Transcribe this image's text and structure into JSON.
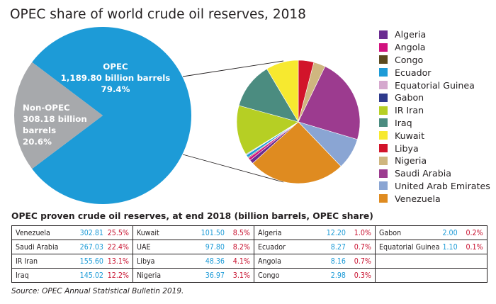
{
  "title": "OPEC share of world crude oil reserves, 2018",
  "table_title": "OPEC proven crude oil reserves, at end 2018 (billion barrels, OPEC share)",
  "source": "Source: OPEC Annual Statistical Bulletin 2019.",
  "chart_data": [
    {
      "type": "pie",
      "labels": [
        "OPEC",
        "Non-OPEC"
      ],
      "values": [
        1189.8,
        308.18
      ],
      "shares": [
        "79.4%",
        "20.6%"
      ],
      "colors": [
        "#1d9bd7",
        "#a7a9ac"
      ],
      "slice_labels": [
        {
          "lines": [
            "OPEC",
            "1,189.80 billion barrels",
            "79.4%"
          ]
        },
        {
          "lines": [
            "Non-OPEC",
            "308.18 billion",
            "barrels",
            "20.6%"
          ]
        }
      ]
    },
    {
      "type": "pie",
      "title": "",
      "labels": [
        "Algeria",
        "Angola",
        "Congo",
        "Ecuador",
        "Equatorial Guinea",
        "Gabon",
        "IR Iran",
        "Iraq",
        "Kuwait",
        "Libya",
        "Nigeria",
        "Saudi Arabia",
        "United Arab Emirates",
        "Venezuela"
      ],
      "values": [
        12.2,
        8.16,
        2.98,
        8.27,
        1.1,
        2.0,
        155.6,
        145.02,
        101.5,
        48.36,
        36.97,
        267.03,
        97.8,
        302.81
      ],
      "colors": [
        "#6b2c91",
        "#d1127e",
        "#5c4a1e",
        "#1d9bd7",
        "#d5a8ce",
        "#2e3a8c",
        "#b6cf24",
        "#4b8c80",
        "#f7e92f",
        "#d2142a",
        "#cfb67f",
        "#9c3b8f",
        "#8aa5d3",
        "#df8b20"
      ],
      "legend_placement": "right"
    }
  ],
  "table": {
    "columns": [
      [
        {
          "name": "Venezuela",
          "value": "302.81",
          "share": "25.5%"
        },
        {
          "name": "Saudi Arabia",
          "value": "267.03",
          "share": "22.4%"
        },
        {
          "name": "IR Iran",
          "value": "155.60",
          "share": "13.1%"
        },
        {
          "name": "Iraq",
          "value": "145.02",
          "share": "12.2%"
        }
      ],
      [
        {
          "name": "Kuwait",
          "value": "101.50",
          "share": "8.5%"
        },
        {
          "name": "UAE",
          "value": "97.80",
          "share": "8.2%"
        },
        {
          "name": "Libya",
          "value": "48.36",
          "share": "4.1%"
        },
        {
          "name": "Nigeria",
          "value": "36.97",
          "share": "3.1%"
        }
      ],
      [
        {
          "name": "Algeria",
          "value": "12.20",
          "share": "1.0%"
        },
        {
          "name": "Ecuador",
          "value": "8.27",
          "share": "0.7%"
        },
        {
          "name": "Angola",
          "value": "8.16",
          "share": "0.7%"
        },
        {
          "name": "Congo",
          "value": "2.98",
          "share": "0.3%"
        }
      ],
      [
        {
          "name": "Gabon",
          "value": "2.00",
          "share": "0.2%"
        },
        {
          "name": "Equatorial Guinea",
          "value": "1.10",
          "share": "0.1%"
        },
        {
          "name": "",
          "value": "",
          "share": ""
        },
        {
          "name": "",
          "value": "",
          "share": ""
        }
      ]
    ]
  }
}
